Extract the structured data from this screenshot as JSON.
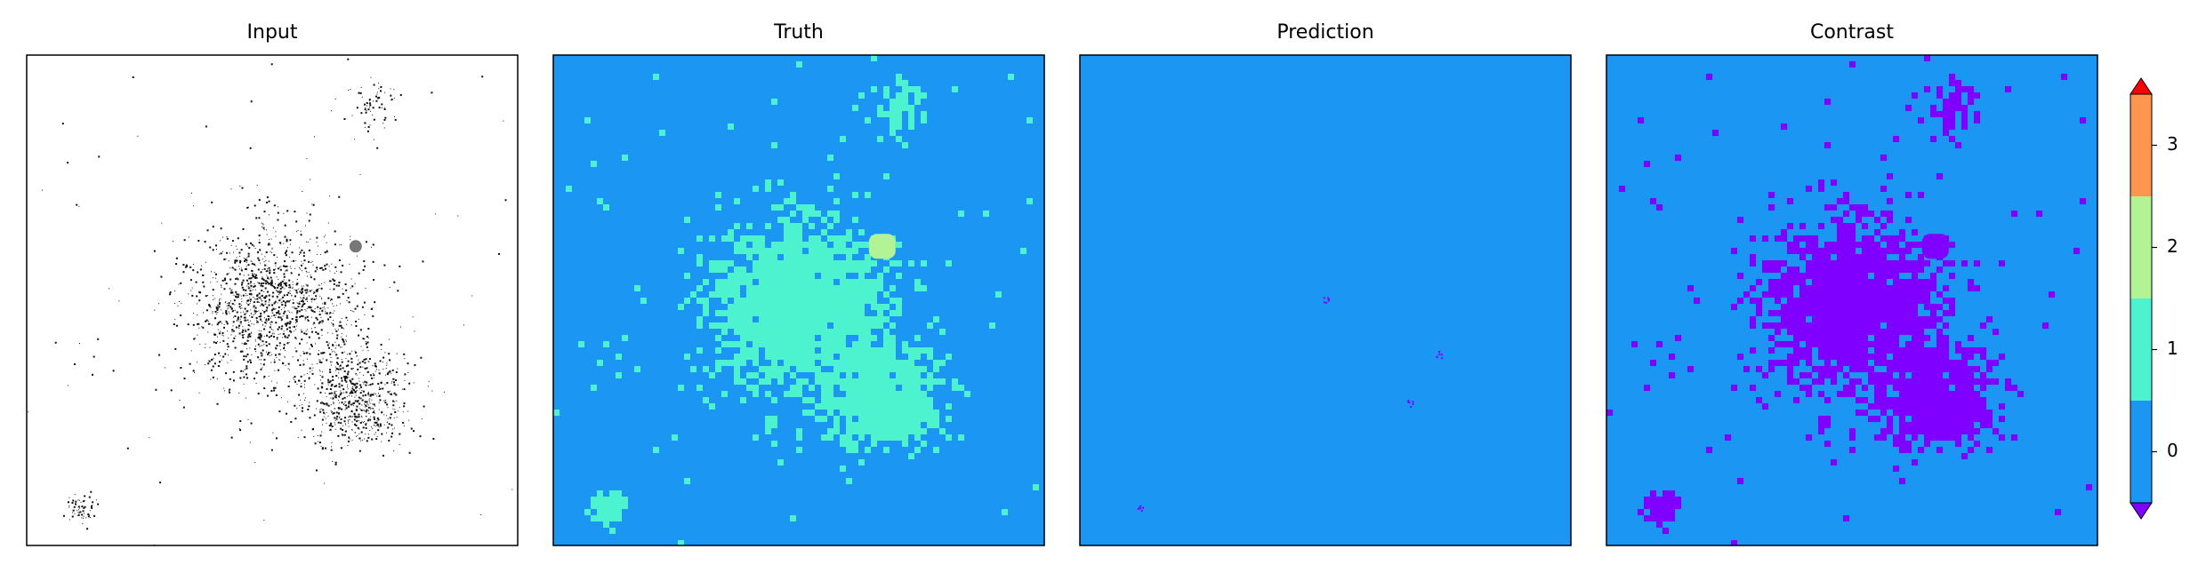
{
  "chart_data": {
    "type": "heatmap",
    "panels": [
      {
        "title": "Input",
        "colormap": "gray_r"
      },
      {
        "title": "Truth",
        "colormap": "rainbow"
      },
      {
        "title": "Prediction",
        "colormap": "rainbow"
      },
      {
        "title": "Contrast",
        "colormap": "rainbow"
      }
    ],
    "colorbar": {
      "ticks": [
        "0",
        "1",
        "2",
        "3"
      ],
      "levels": [
        {
          "range": [
            -0.5,
            0.5
          ],
          "color": "#1b96f3"
        },
        {
          "range": [
            0.5,
            1.5
          ],
          "color": "#4df3ce"
        },
        {
          "range": [
            1.5,
            2.5
          ],
          "color": "#b2f396"
        },
        {
          "range": [
            2.5,
            3.5
          ],
          "color": "#ff964f"
        }
      ],
      "extend_under_color": "#8000ff",
      "extend_over_color": "#ff0000",
      "range": [
        -0.5,
        3.5
      ]
    },
    "features": [
      {
        "name": "large-cluster",
        "x": 0.5,
        "y": 0.51,
        "spread": 0.085,
        "count": 1400,
        "truth_class": 1
      },
      {
        "name": "lower-right-cluster",
        "x": 0.67,
        "y": 0.7,
        "spread": 0.055,
        "count": 650,
        "truth_class": 1
      },
      {
        "name": "upper-right-cluster",
        "x": 0.7,
        "y": 0.1,
        "spread": 0.03,
        "count": 70,
        "truth_class": 1
      },
      {
        "name": "bottom-left-cluster",
        "x": 0.11,
        "y": 0.92,
        "spread": 0.015,
        "count": 60,
        "truth_class": 1
      },
      {
        "name": "compact-source",
        "x": 0.67,
        "y": 0.39,
        "truth_class": 2
      }
    ],
    "prediction_marks": [
      {
        "x": 0.5,
        "y": 0.5
      },
      {
        "x": 0.73,
        "y": 0.61
      },
      {
        "x": 0.67,
        "y": 0.71
      },
      {
        "x": 0.12,
        "y": 0.92
      }
    ]
  }
}
